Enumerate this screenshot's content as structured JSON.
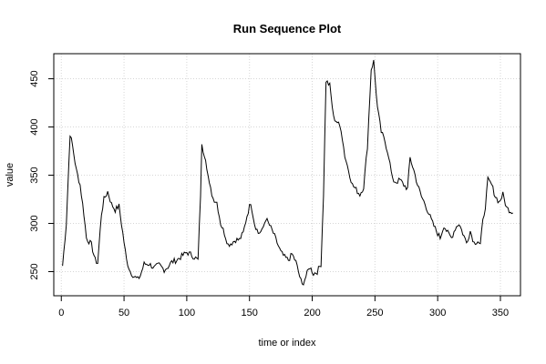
{
  "chart_data": {
    "type": "line",
    "title": "Run Sequence Plot",
    "xlabel": "time or index",
    "ylabel": "value",
    "xlim": [
      -6,
      366
    ],
    "ylim": [
      225,
      476
    ],
    "xticks": [
      0,
      50,
      100,
      150,
      200,
      250,
      300,
      350
    ],
    "yticks": [
      250,
      300,
      350,
      400,
      450
    ],
    "grid": "dotted",
    "line_color": "#000000",
    "anchors": [
      [
        1,
        256
      ],
      [
        4,
        300
      ],
      [
        7,
        393
      ],
      [
        9,
        380
      ],
      [
        12,
        355
      ],
      [
        15,
        340
      ],
      [
        18,
        310
      ],
      [
        20,
        285
      ],
      [
        24,
        278
      ],
      [
        27,
        262
      ],
      [
        29,
        259
      ],
      [
        32,
        310
      ],
      [
        34,
        325
      ],
      [
        37,
        333
      ],
      [
        40,
        320
      ],
      [
        43,
        314
      ],
      [
        46,
        318
      ],
      [
        49,
        290
      ],
      [
        52,
        262
      ],
      [
        55,
        250
      ],
      [
        58,
        245
      ],
      [
        61,
        242
      ],
      [
        63,
        246
      ],
      [
        66,
        258
      ],
      [
        70,
        258
      ],
      [
        74,
        254
      ],
      [
        78,
        257
      ],
      [
        82,
        252
      ],
      [
        85,
        255
      ],
      [
        88,
        260
      ],
      [
        92,
        262
      ],
      [
        96,
        266
      ],
      [
        100,
        270
      ],
      [
        103,
        268
      ],
      [
        106,
        265
      ],
      [
        109,
        262
      ],
      [
        111,
        330
      ],
      [
        112,
        380
      ],
      [
        115,
        368
      ],
      [
        118,
        340
      ],
      [
        121,
        326
      ],
      [
        124,
        322
      ],
      [
        127,
        300
      ],
      [
        130,
        290
      ],
      [
        133,
        278
      ],
      [
        136,
        280
      ],
      [
        139,
        283
      ],
      [
        142,
        283
      ],
      [
        145,
        290
      ],
      [
        148,
        308
      ],
      [
        151,
        322
      ],
      [
        154,
        300
      ],
      [
        157,
        290
      ],
      [
        160,
        292
      ],
      [
        163,
        305
      ],
      [
        166,
        298
      ],
      [
        169,
        290
      ],
      [
        172,
        280
      ],
      [
        175,
        270
      ],
      [
        178,
        265
      ],
      [
        181,
        262
      ],
      [
        184,
        268
      ],
      [
        187,
        260
      ],
      [
        190,
        245
      ],
      [
        192,
        236
      ],
      [
        195,
        245
      ],
      [
        198,
        255
      ],
      [
        201,
        248
      ],
      [
        204,
        250
      ],
      [
        207,
        258
      ],
      [
        209,
        330
      ],
      [
        211,
        448
      ],
      [
        214,
        443
      ],
      [
        217,
        410
      ],
      [
        220,
        405
      ],
      [
        223,
        398
      ],
      [
        226,
        370
      ],
      [
        229,
        355
      ],
      [
        232,
        340
      ],
      [
        235,
        335
      ],
      [
        238,
        330
      ],
      [
        241,
        338
      ],
      [
        244,
        380
      ],
      [
        247,
        460
      ],
      [
        249,
        468
      ],
      [
        252,
        420
      ],
      [
        255,
        395
      ],
      [
        258,
        385
      ],
      [
        261,
        370
      ],
      [
        264,
        345
      ],
      [
        267,
        343
      ],
      [
        270,
        345
      ],
      [
        273,
        340
      ],
      [
        276,
        336
      ],
      [
        278,
        368
      ],
      [
        281,
        355
      ],
      [
        284,
        340
      ],
      [
        287,
        328
      ],
      [
        290,
        320
      ],
      [
        293,
        310
      ],
      [
        296,
        300
      ],
      [
        299,
        292
      ],
      [
        302,
        285
      ],
      [
        305,
        298
      ],
      [
        308,
        290
      ],
      [
        311,
        285
      ],
      [
        314,
        295
      ],
      [
        317,
        300
      ],
      [
        320,
        290
      ],
      [
        323,
        280
      ],
      [
        326,
        292
      ],
      [
        329,
        280
      ],
      [
        332,
        282
      ],
      [
        334,
        278
      ],
      [
        336,
        302
      ],
      [
        338,
        318
      ],
      [
        340,
        345
      ],
      [
        343,
        340
      ],
      [
        346,
        328
      ],
      [
        349,
        322
      ],
      [
        352,
        330
      ],
      [
        355,
        316
      ],
      [
        358,
        313
      ],
      [
        360,
        312
      ]
    ]
  }
}
